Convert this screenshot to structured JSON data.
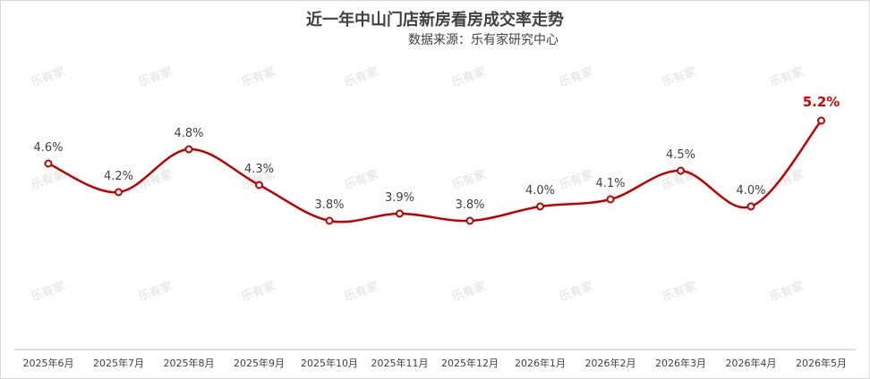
{
  "chart_data": {
    "type": "line",
    "title": "近一年中山门店新房看房成交率走势",
    "subtitle": "数据来源：乐有家研究中心",
    "categories": [
      "2025年6月",
      "2025年7月",
      "2025年8月",
      "2025年9月",
      "2025年10月",
      "2025年11月",
      "2025年12月",
      "2026年1月",
      "2026年2月",
      "2026年3月",
      "2026年4月",
      "2026年5月"
    ],
    "series": [
      {
        "values": [
          4.6,
          4.2,
          4.8,
          4.3,
          3.8,
          3.9,
          3.8,
          4.0,
          4.1,
          4.5,
          4.0,
          5.2
        ]
      }
    ],
    "data_labels": [
      "4.6%",
      "4.2%",
      "4.8%",
      "4.3%",
      "3.8%",
      "3.9%",
      "3.8%",
      "4.0%",
      "4.1%",
      "4.5%",
      "4.0%",
      "5.2%"
    ],
    "highlight_index": 11,
    "ylim": [
      2.0,
      5.5
    ],
    "grid": false,
    "watermark": "乐有家",
    "colors": {
      "line": "#c00000",
      "highlight": "#e00000",
      "text": "#404040",
      "axis": "#bfbfbf"
    }
  }
}
